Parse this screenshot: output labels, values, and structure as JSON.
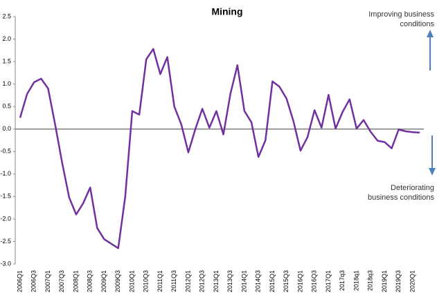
{
  "chart_data": {
    "type": "line",
    "title": "Mining",
    "categories": [
      "2006Q1",
      null,
      "2006Q3",
      null,
      "2007Q1",
      null,
      "2007Q3",
      null,
      "2008Q1",
      null,
      "2008Q3",
      null,
      "2009Q1",
      null,
      "2009Q3",
      null,
      "2010Q1",
      null,
      "2010Q3",
      null,
      "2011Q1",
      null,
      "2011Q3",
      null,
      "2012Q1",
      null,
      "2012Q3",
      null,
      "2013Q1",
      null,
      "2013Q3",
      null,
      "2014Q1",
      null,
      "2014Q3",
      null,
      "2015Q1",
      null,
      "2015Q3",
      null,
      "2016Q1",
      null,
      "2016Q3",
      null,
      "2017Q1",
      null,
      "2017q3",
      null,
      "2018q1",
      null,
      "2018q3",
      null,
      "2019Q1",
      null,
      "2019Q3",
      null,
      "2020Q1",
      null
    ],
    "series": [
      {
        "name": "Mining",
        "color": "#7030a0",
        "values": [
          0.25,
          0.78,
          1.04,
          1.12,
          0.9,
          0.1,
          -0.75,
          -1.52,
          -1.9,
          -1.65,
          -1.3,
          -2.2,
          -2.45,
          -2.55,
          -2.65,
          -1.5,
          0.4,
          0.32,
          1.55,
          1.78,
          1.22,
          1.6,
          0.5,
          0.1,
          -0.52,
          0.0,
          0.45,
          0.03,
          0.4,
          -0.12,
          0.78,
          1.42,
          0.4,
          0.15,
          -0.62,
          -0.25,
          1.06,
          0.94,
          0.68,
          0.17,
          -0.48,
          -0.18,
          0.42,
          0.03,
          0.76,
          0.01,
          0.38,
          0.66,
          0.01,
          0.2,
          -0.06,
          -0.26,
          -0.29,
          -0.43,
          -0.01,
          -0.05,
          -0.07,
          -0.08
        ]
      }
    ],
    "ylim": [
      -3.0,
      2.5
    ],
    "yticks": [
      2.5,
      {
        "value": 2.0,
        "label": "2.0"
      },
      1.5,
      {
        "value": 1.0,
        "label": "1.0"
      },
      0.5,
      {
        "value": 0.0,
        "label": "0.0"
      },
      -0.5,
      {
        "value": -1.0,
        "label": "-1.0"
      },
      -1.5,
      {
        "value": -2.0,
        "label": "-2.0"
      },
      -2.5,
      {
        "value": -3.0,
        "label": "-3.0"
      }
    ],
    "grid": false,
    "annotations": [
      {
        "lines": [
          "Improving business",
          "conditions"
        ]
      },
      {
        "lines": [
          "Deteriorating",
          "business conditions"
        ]
      }
    ]
  }
}
